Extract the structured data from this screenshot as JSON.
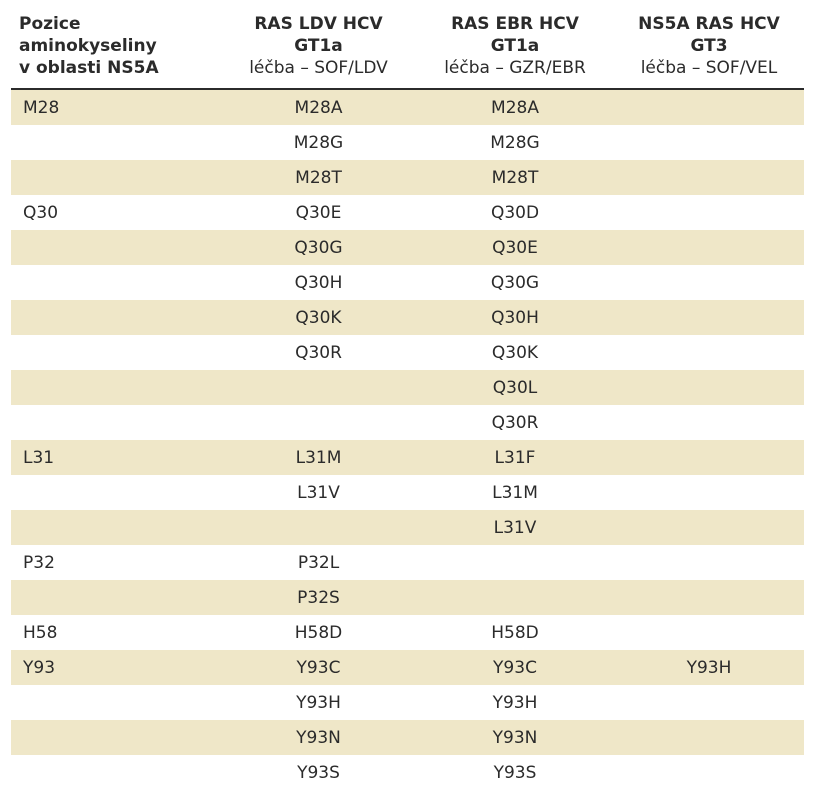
{
  "header": {
    "col0": [
      "Pozice",
      "aminokyseliny",
      "v oblasti NS5A"
    ],
    "col1": {
      "title1": "RAS LDV HCV",
      "title2": "GT1a",
      "sub": "léčba – SOF/LDV"
    },
    "col2": {
      "title1": "RAS EBR HCV",
      "title2": "GT1a",
      "sub": "léčba – GZR/EBR"
    },
    "col3": {
      "title1": "NS5A RAS HCV",
      "title2": "GT3",
      "sub": "léčba – SOF/VEL"
    }
  },
  "rows": [
    [
      "M28",
      "M28A",
      "M28A",
      ""
    ],
    [
      "",
      "M28G",
      "M28G",
      ""
    ],
    [
      "",
      "M28T",
      "M28T",
      ""
    ],
    [
      "Q30",
      "Q30E",
      "Q30D",
      ""
    ],
    [
      "",
      "Q30G",
      "Q30E",
      ""
    ],
    [
      "",
      "Q30H",
      "Q30G",
      ""
    ],
    [
      "",
      "Q30K",
      "Q30H",
      ""
    ],
    [
      "",
      "Q30R",
      "Q30K",
      ""
    ],
    [
      "",
      "",
      "Q30L",
      ""
    ],
    [
      "",
      "",
      "Q30R",
      ""
    ],
    [
      "L31",
      "L31M",
      "L31F",
      ""
    ],
    [
      "",
      "L31V",
      "L31M",
      ""
    ],
    [
      "",
      "",
      "L31V",
      ""
    ],
    [
      "P32",
      "P32L",
      "",
      ""
    ],
    [
      "",
      "P32S",
      "",
      ""
    ],
    [
      "H58",
      "H58D",
      "H58D",
      ""
    ],
    [
      "Y93",
      "Y93C",
      "Y93C",
      "Y93H"
    ],
    [
      "",
      "Y93H",
      "Y93H",
      ""
    ],
    [
      "",
      "Y93N",
      "Y93N",
      ""
    ],
    [
      "",
      "Y93S",
      "Y93S",
      ""
    ]
  ],
  "colors": {
    "shaded_row": "#efe7c8",
    "text": "#2b2b2b"
  }
}
